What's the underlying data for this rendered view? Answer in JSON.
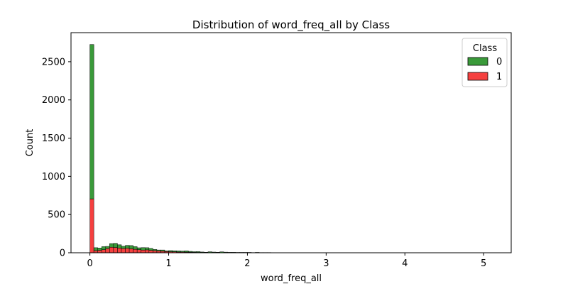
{
  "chart_data": {
    "type": "bar",
    "stacked": true,
    "title": "Distribution of word_freq_all by Class",
    "xlabel": "word_freq_all",
    "ylabel": "Count",
    "xlim": [
      -0.24,
      5.35
    ],
    "ylim": [
      0,
      2880
    ],
    "x_ticks": [
      0,
      1,
      2,
      3,
      4,
      5
    ],
    "y_ticks": [
      0,
      500,
      1000,
      1500,
      2000,
      2500
    ],
    "bin_width": 0.05,
    "bin_starts": [
      0.0,
      0.05,
      0.1,
      0.15,
      0.2,
      0.25,
      0.3,
      0.35,
      0.4,
      0.45,
      0.5,
      0.55,
      0.6,
      0.65,
      0.7,
      0.75,
      0.8,
      0.85,
      0.9,
      0.95,
      1.0,
      1.05,
      1.1,
      1.15,
      1.2,
      1.25,
      1.3,
      1.35,
      1.4,
      1.45,
      1.5,
      1.55,
      1.6,
      1.65,
      1.7,
      1.75,
      1.8,
      1.85,
      1.9,
      1.95,
      2.0,
      2.05,
      2.1,
      2.15,
      2.2,
      2.25
    ],
    "series": [
      {
        "name": "1",
        "color": "#f5403f",
        "values": [
          705,
          28,
          32,
          40,
          55,
          72,
          68,
          62,
          55,
          58,
          52,
          45,
          40,
          35,
          38,
          32,
          28,
          24,
          20,
          16,
          14,
          12,
          10,
          10,
          9,
          8,
          6,
          5,
          4,
          3,
          3,
          3,
          2,
          2,
          2,
          2,
          2,
          1,
          1,
          1,
          1,
          1,
          1,
          1,
          1,
          1
        ]
      },
      {
        "name": "0",
        "color": "#3a9a3a",
        "values": [
          2020,
          38,
          30,
          40,
          28,
          48,
          55,
          42,
          30,
          38,
          42,
          35,
          25,
          32,
          28,
          25,
          15,
          12,
          16,
          10,
          14,
          14,
          14,
          12,
          16,
          10,
          8,
          10,
          6,
          4,
          10,
          6,
          5,
          10,
          6,
          4,
          4,
          4,
          4,
          4,
          4,
          2,
          4,
          2,
          2,
          2
        ]
      }
    ],
    "legend": {
      "title": "Class",
      "placement": "top-right",
      "entries": [
        {
          "label": "0",
          "color": "#3a9a3a"
        },
        {
          "label": "1",
          "color": "#f5403f"
        }
      ]
    }
  }
}
